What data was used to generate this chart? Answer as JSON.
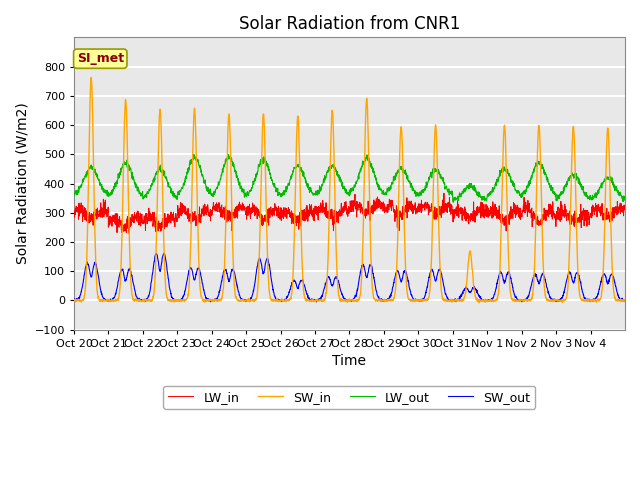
{
  "title": "Solar Radiation from CNR1",
  "xlabel": "Time",
  "ylabel": "Solar Radiation (W/m2)",
  "ylim": [
    -100,
    900
  ],
  "yticks": [
    -100,
    0,
    100,
    200,
    300,
    400,
    500,
    600,
    700,
    800
  ],
  "xtick_labels": [
    "Oct 20",
    "Oct 21",
    "Oct 22",
    "Oct 23",
    "Oct 24",
    "Oct 25",
    "Oct 26",
    "Oct 27",
    "Oct 28",
    "Oct 29",
    "Oct 30",
    "Oct 31",
    "Nov 1",
    "Nov 2",
    "Nov 3",
    "Nov 4"
  ],
  "legend_labels": [
    "LW_in",
    "SW_in",
    "LW_out",
    "SW_out"
  ],
  "colors": {
    "LW_in": "#FF0000",
    "SW_in": "#FFA500",
    "LW_out": "#00BB00",
    "SW_out": "#0000FF"
  },
  "annotation_text": "SI_met",
  "annotation_fg": "#8B0000",
  "annotation_bg": "#FFFF99",
  "annotation_edge": "#999900",
  "plot_bg": "#E8E8E8",
  "fig_bg": "#FFFFFF",
  "grid_color": "#FFFFFF",
  "n_days": 16,
  "pts_per_day": 144,
  "title_fontsize": 12,
  "axis_label_fontsize": 10,
  "tick_fontsize": 8,
  "legend_fontsize": 9,
  "SW_in_peaks": [
    760,
    685,
    655,
    655,
    638,
    638,
    630,
    650,
    690,
    595,
    600,
    165,
    600,
    600,
    595,
    590
  ],
  "LW_out_peaks": [
    455,
    470,
    450,
    490,
    490,
    480,
    460,
    460,
    485,
    450,
    445,
    390,
    450,
    470,
    430,
    420
  ],
  "LW_in_base": [
    295,
    265,
    270,
    295,
    305,
    295,
    290,
    300,
    315,
    310,
    310,
    295,
    290,
    290,
    285,
    300
  ],
  "SW_out_peaks": [
    120,
    100,
    150,
    105,
    100,
    135,
    65,
    75,
    115,
    95,
    100,
    40,
    90,
    85,
    90,
    85
  ],
  "LW_out_night": [
    360,
    355,
    345,
    360,
    355,
    355,
    355,
    360,
    365,
    360,
    360,
    340,
    355,
    360,
    345,
    345
  ]
}
